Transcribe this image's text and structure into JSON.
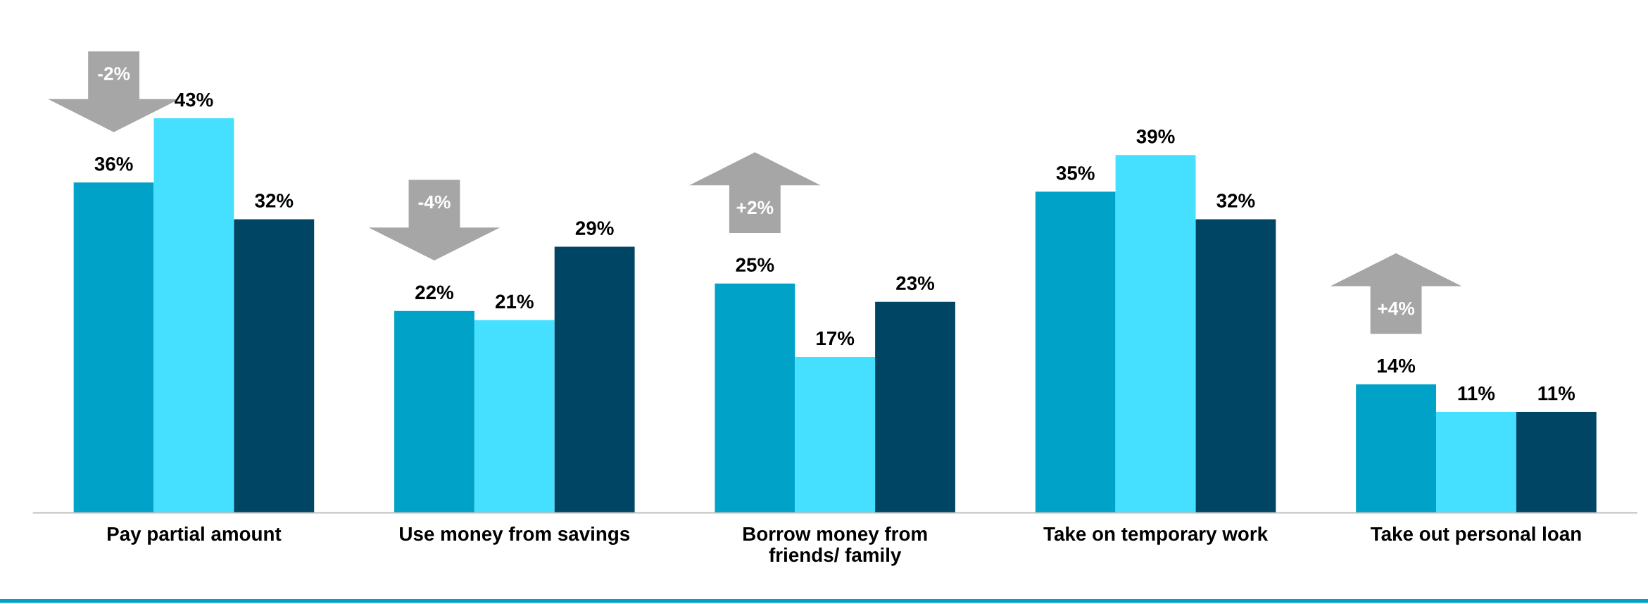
{
  "chart_data": {
    "type": "bar",
    "categories": [
      "Pay partial amount",
      "Use money from savings",
      "Borrow money from\nfriends/ family",
      "Take on temporary work",
      "Take out personal loan"
    ],
    "series": [
      {
        "color": "#00a3c7",
        "values": [
          36,
          22,
          25,
          35,
          14
        ],
        "value_labels": [
          "36%",
          "22%",
          "25%",
          "35%",
          "14%"
        ]
      },
      {
        "color": "#45dfff",
        "values": [
          43,
          21,
          17,
          39,
          11
        ],
        "value_labels": [
          "43%",
          "21%",
          "17%",
          "39%",
          "11%"
        ]
      },
      {
        "color": "#004563",
        "values": [
          32,
          29,
          23,
          32,
          11
        ],
        "value_labels": [
          "32%",
          "29%",
          "23%",
          "32%",
          "11%"
        ]
      }
    ],
    "tick_labels": "x",
    "grid": false,
    "legend": false,
    "annotations": [
      "-2%",
      "-4%",
      "+2%",
      "+4%"
    ]
  }
}
